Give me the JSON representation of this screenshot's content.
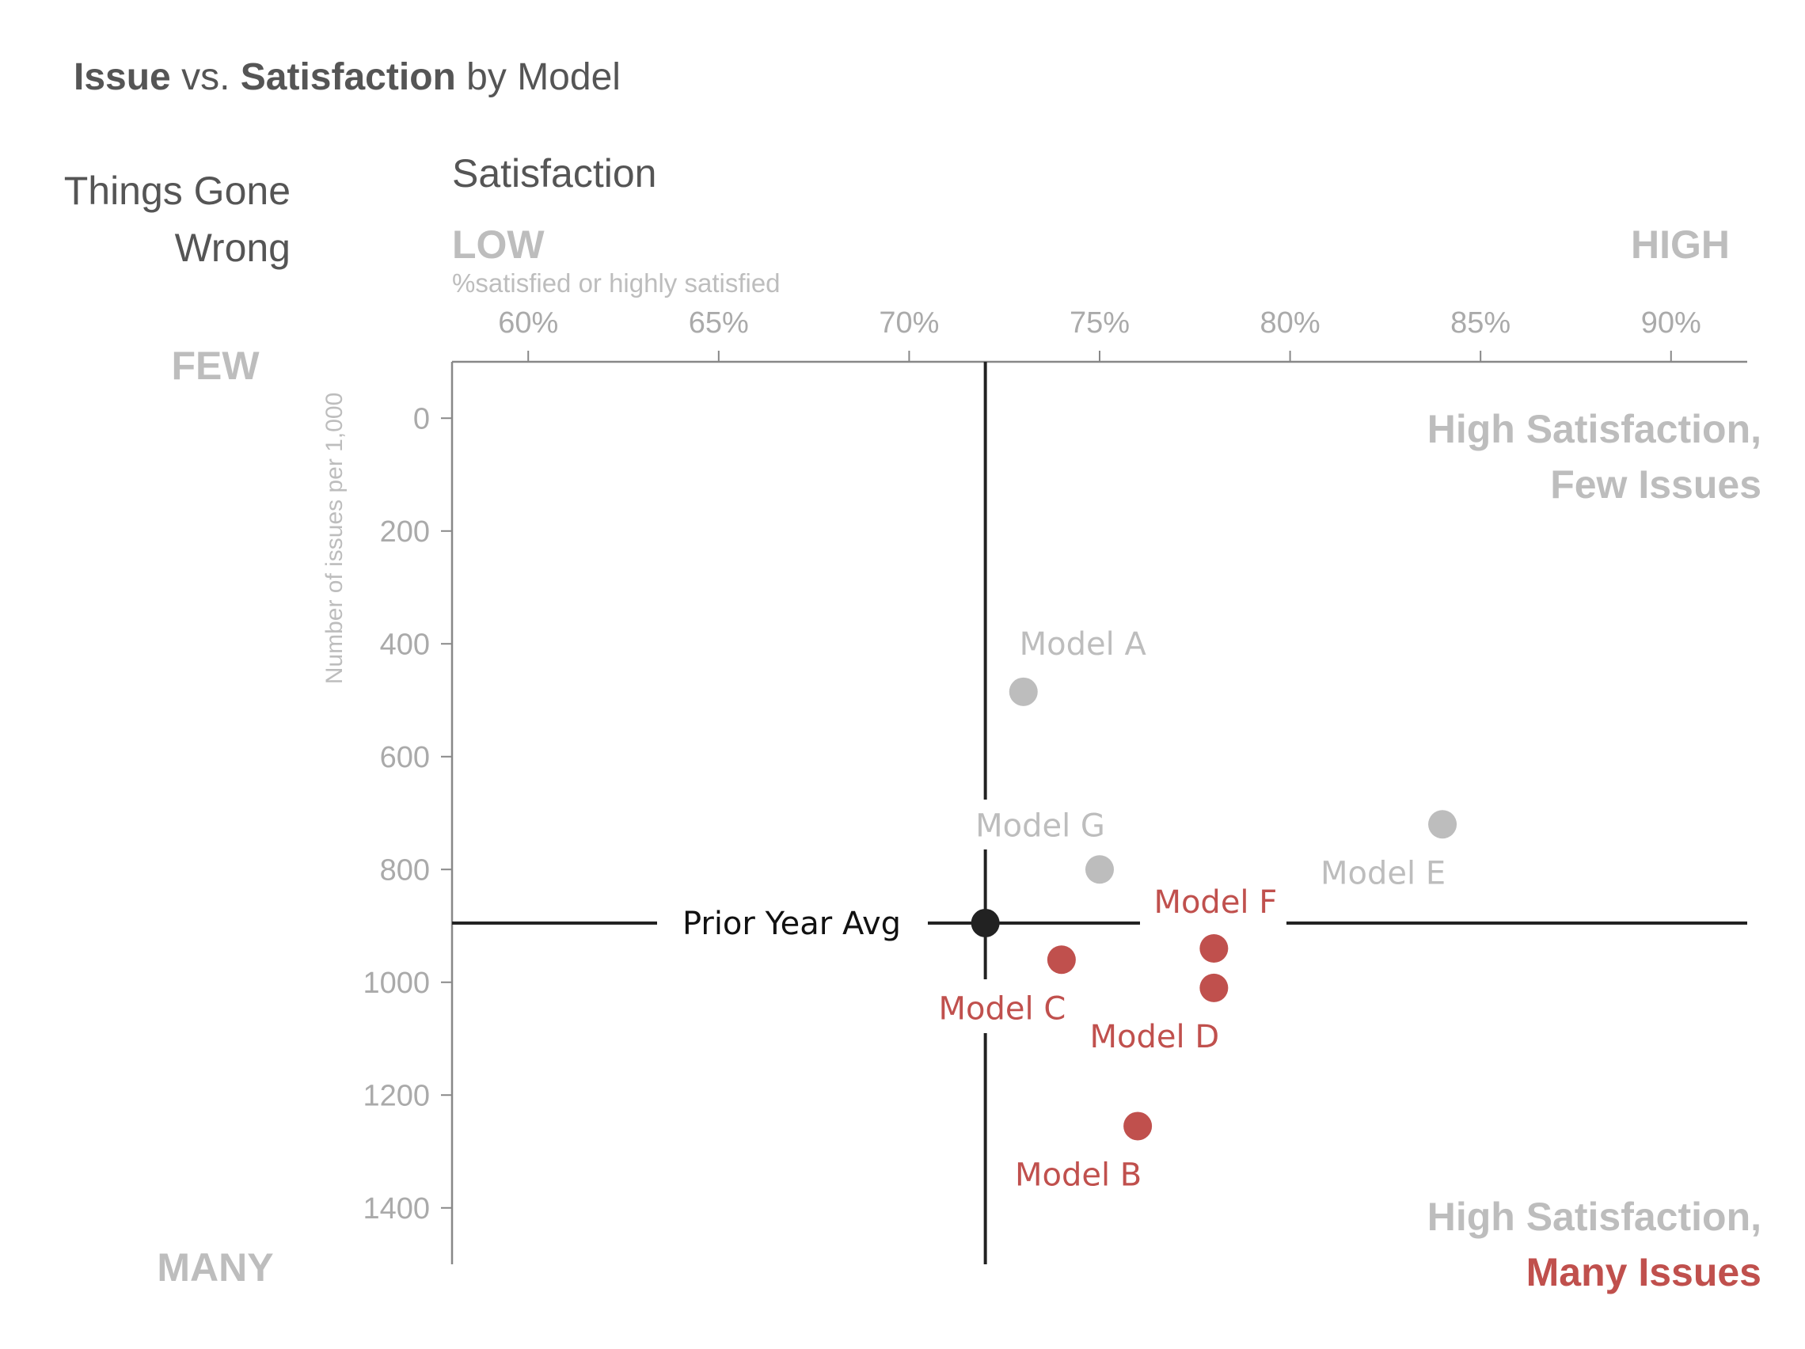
{
  "title": {
    "bold1": "Issue",
    "mid1": " vs. ",
    "bold2": "Satisfaction",
    "mid2": " by Model"
  },
  "labels": {
    "y_title_line1": "Things Gone",
    "y_title_line2": "Wrong",
    "x_title": "Satisfaction",
    "x_low": "LOW",
    "x_high": "HIGH",
    "x_sublabel": "%satisfied or highly satisfied",
    "y_few": "FEW",
    "y_many": "MANY",
    "y_axis_label": "Number of issues per 1,000",
    "quad_top_line1": "High Satisfaction,",
    "quad_top_line2": "Few Issues",
    "quad_bottom_line1": "High Satisfaction,",
    "quad_bottom_line2": "Many Issues",
    "prior_year": "Prior Year Avg"
  },
  "colors": {
    "title": "#555555",
    "muted": "#bdbdbd",
    "tick": "#aaaaaa",
    "axis": "#888888",
    "ref_line": "#222222",
    "highlight": "#c0504d"
  },
  "chart_data": {
    "type": "scatter",
    "xlim": [
      58,
      92
    ],
    "ylim": [
      1500,
      -100
    ],
    "x_ticks": [
      60,
      65,
      70,
      75,
      80,
      85,
      90
    ],
    "x_tick_labels": [
      "60%",
      "65%",
      "70%",
      "75%",
      "80%",
      "85%",
      "90%"
    ],
    "y_ticks": [
      0,
      200,
      400,
      600,
      800,
      1000,
      1200,
      1400
    ],
    "y_tick_labels": [
      "0",
      "200",
      "400",
      "600",
      "800",
      "1000",
      "1200",
      "1400"
    ],
    "reference": {
      "name": "Prior Year Avg",
      "x": 72,
      "y": 895
    },
    "points": [
      {
        "name": "Model A",
        "x": 73,
        "y": 485,
        "highlight": false
      },
      {
        "name": "Model G",
        "x": 75,
        "y": 800,
        "highlight": false
      },
      {
        "name": "Model E",
        "x": 84,
        "y": 720,
        "highlight": false
      },
      {
        "name": "Model F",
        "x": 78,
        "y": 940,
        "highlight": true
      },
      {
        "name": "Model C",
        "x": 74,
        "y": 960,
        "highlight": true
      },
      {
        "name": "Model D",
        "x": 78,
        "y": 1010,
        "highlight": true
      },
      {
        "name": "Model B",
        "x": 76,
        "y": 1255,
        "highlight": true
      }
    ],
    "grid": false
  }
}
